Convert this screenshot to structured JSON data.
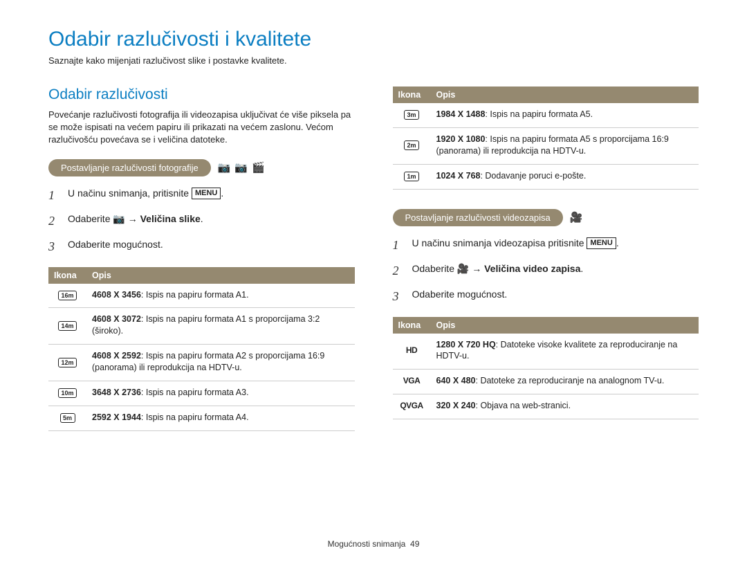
{
  "title": "Odabir razlučivosti i kvalitete",
  "subtitle": "Saznajte kako mijenjati razlučivost slike i postavke kvalitete.",
  "section_heading": "Odabir razlučivosti",
  "section_para": "Povećanje razlučivosti fotografija ili videozapisa uključivat će više piksela pa se može ispisati na većem papiru ili prikazati na većem zaslonu. Većom razlučivošću povećava se i veličina datoteke.",
  "photo": {
    "pill": "Postavljanje razlučivosti fotografije",
    "step1_prefix": "U načinu snimanja, pritisnite ",
    "menu": "MENU",
    "step1_suffix": ".",
    "step2_prefix": "Odaberite ",
    "step2_arrow": " → ",
    "step2_bold": "Veličina slike",
    "step2_suffix": ".",
    "step3": "Odaberite mogućnost.",
    "table": {
      "col1": "Ikona",
      "col2": "Opis",
      "rows": [
        {
          "icon": "16m",
          "bold": "4608 X 3456",
          "desc": ": Ispis na papiru formata A1."
        },
        {
          "icon": "14m",
          "bold": "4608 X 3072",
          "desc": ": Ispis na papiru formata A1 s proporcijama 3:2 (široko)."
        },
        {
          "icon": "12m",
          "bold": "4608 X 2592",
          "desc": ": Ispis na papiru formata A2 s proporcijama 16:9 (panorama) ili reprodukcija na HDTV-u."
        },
        {
          "icon": "10m",
          "bold": "3648 X 2736",
          "desc": ": Ispis na papiru formata A3."
        },
        {
          "icon": "5m",
          "bold": "2592 X 1944",
          "desc": ": Ispis na papiru formata A4."
        }
      ]
    }
  },
  "right_table": {
    "col1": "Ikona",
    "col2": "Opis",
    "rows": [
      {
        "icon": "3m",
        "bold": "1984 X 1488",
        "desc": ": Ispis na papiru formata A5."
      },
      {
        "icon": "2m",
        "bold": "1920 X 1080",
        "desc": ": Ispis na papiru formata A5 s proporcijama 16:9 (panorama) ili reprodukcija na HDTV-u."
      },
      {
        "icon": "1m",
        "bold": "1024 X 768",
        "desc": ": Dodavanje poruci e-pošte."
      }
    ]
  },
  "video": {
    "pill": "Postavljanje razlučivosti videozapisa",
    "step1_prefix": "U načinu snimanja videozapisa pritisnite ",
    "menu": "MENU",
    "step1_suffix": ".",
    "step2_prefix": "Odaberite ",
    "step2_arrow": " → ",
    "step2_bold": "Veličina video zapisa",
    "step2_suffix": ".",
    "step3": "Odaberite mogućnost.",
    "table": {
      "col1": "Ikona",
      "col2": "Opis",
      "rows": [
        {
          "icon": "HD",
          "bold": "1280 X 720 HQ",
          "desc": ": Datoteke visoke kvalitete za reproduciranje na HDTV-u."
        },
        {
          "icon": "VGA",
          "bold": "640 X 480",
          "desc": ": Datoteke za reproduciranje na analognom TV-u."
        },
        {
          "icon": "QVGA",
          "bold": "320 X 240",
          "desc": ": Objava na web-stranici."
        }
      ]
    }
  },
  "footer_text": "Mogućnosti snimanja",
  "footer_page": "49",
  "icons": {
    "camera": "📷",
    "smart": "📷",
    "scene": "🎬",
    "video": "🎥"
  },
  "colors": {
    "blue": "#0b7ec2",
    "brown": "#958970"
  }
}
